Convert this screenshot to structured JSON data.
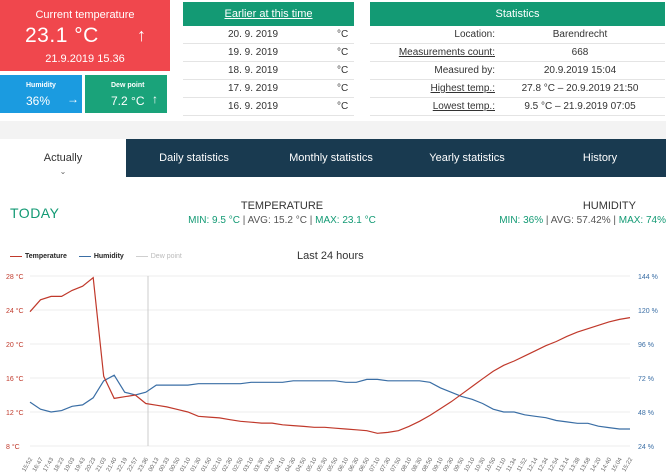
{
  "current": {
    "label": "Current temperature",
    "value": "23.1 °C",
    "trend": "↑",
    "datetime": "21.9.2019 15.36",
    "color": "#f0474d"
  },
  "humidity_card": {
    "label": "Humidity",
    "value": "36%",
    "trend": "→",
    "color": "#1b9be0"
  },
  "dew_card": {
    "label": "Dew point",
    "value": "7.2 °C",
    "trend": "↑",
    "color": "#1aa37a"
  },
  "earlier": {
    "title": "Earlier at this time",
    "rows": [
      {
        "date": "20. 9. 2019",
        "unit": "°C"
      },
      {
        "date": "19. 9. 2019",
        "unit": "°C"
      },
      {
        "date": "18. 9. 2019",
        "unit": "°C"
      },
      {
        "date": "17. 9. 2019",
        "unit": "°C"
      },
      {
        "date": "16. 9. 2019",
        "unit": "°C"
      }
    ]
  },
  "statistics": {
    "title": "Statistics",
    "rows": [
      {
        "key": "Location:",
        "value": "Barendrecht"
      },
      {
        "key": "Measurements count:",
        "value": "668"
      },
      {
        "key": "Measured by:",
        "value": "20.9.2019 15:04"
      },
      {
        "key": "Highest temp.:",
        "value": "27.8 °C – 20.9.2019 21:50"
      },
      {
        "key": "Lowest temp.:",
        "value": "9.5 °C – 21.9.2019 07:05"
      }
    ]
  },
  "tabs": [
    "Actually",
    "Daily statistics",
    "Monthly statistics",
    "Yearly statistics",
    "History"
  ],
  "tab_chevron": "⌄",
  "today": {
    "label": "TODAY",
    "temperature": {
      "title": "TEMPERATURE",
      "min": "MIN: 9.5 °C",
      "avg": "AVG: 15.2 °C",
      "max": "MAX: 23.1 °C"
    },
    "humidity": {
      "title": "HUMIDITY",
      "min": "MIN: 36%",
      "avg": "AVG: 57.42%",
      "max": "MAX: 74%"
    }
  },
  "chart_data": {
    "type": "line",
    "title": "Last 24 hours",
    "legend": [
      "Temperature",
      "Humidity",
      "Dew point"
    ],
    "colors": {
      "temperature": "#c0392b",
      "humidity": "#3a6ea5",
      "dew": "#cfcfcf"
    },
    "y_left": {
      "ticks": [
        "28 °C",
        "24 °C",
        "20 °C",
        "16 °C",
        "12 °C",
        "8 °C"
      ],
      "values": [
        28,
        24,
        20,
        16,
        12,
        8
      ]
    },
    "y_right": {
      "ticks": [
        "144 %",
        "120 %",
        "96 %",
        "72 %",
        "48 %",
        "24 %"
      ],
      "values": [
        144,
        120,
        96,
        72,
        48,
        24
      ]
    },
    "x_labels": [
      "15:52",
      "16:47",
      "17:43",
      "18:23",
      "19:03",
      "19:43",
      "20:23",
      "21:03",
      "21:40",
      "22:19",
      "22:57",
      "23:36",
      "00:13",
      "00:33",
      "00:50",
      "01:10",
      "01:30",
      "01:50",
      "02:10",
      "02:30",
      "02:50",
      "03:10",
      "03:30",
      "03:50",
      "04:10",
      "04:30",
      "04:50",
      "05:10",
      "05:30",
      "05:50",
      "06:10",
      "06:30",
      "06:50",
      "07:10",
      "07:30",
      "07:50",
      "08:10",
      "08:30",
      "08:50",
      "09:10",
      "09:30",
      "09:50",
      "10:10",
      "10:30",
      "10:50",
      "11:10",
      "11:34",
      "11:52",
      "12:14",
      "12:34",
      "12:54",
      "13:14",
      "13:38",
      "13:58",
      "14:20",
      "14:40",
      "15:04",
      "15:22"
    ],
    "temperature": [
      23.8,
      25.2,
      25.6,
      25.6,
      26.3,
      26.8,
      27.8,
      16.2,
      13.6,
      13.8,
      14.0,
      13.0,
      12.8,
      12.6,
      12.3,
      12.0,
      11.5,
      11.4,
      11.3,
      11.1,
      10.9,
      10.8,
      10.7,
      10.7,
      10.5,
      10.4,
      10.3,
      10.2,
      10.2,
      10.1,
      10.0,
      9.9,
      9.8,
      9.5,
      9.6,
      9.8,
      10.3,
      10.9,
      11.6,
      12.4,
      13.2,
      14.1,
      15.0,
      15.9,
      16.8,
      17.5,
      18.0,
      18.6,
      19.2,
      19.8,
      20.3,
      20.9,
      21.4,
      21.8,
      22.2,
      22.6,
      22.9,
      23.1
    ],
    "humidity": [
      55,
      50,
      48,
      49,
      52,
      53,
      58,
      70,
      74,
      62,
      60,
      62,
      67,
      67,
      67,
      67,
      68,
      68,
      68,
      68,
      68,
      69,
      69,
      69,
      69,
      70,
      70,
      70,
      70,
      70,
      69,
      69,
      71,
      71,
      70,
      70,
      70,
      70,
      69,
      65,
      62,
      59,
      57,
      54,
      50,
      48,
      48,
      46,
      45,
      44,
      42,
      41,
      40,
      40,
      38,
      37,
      36,
      36
    ]
  }
}
